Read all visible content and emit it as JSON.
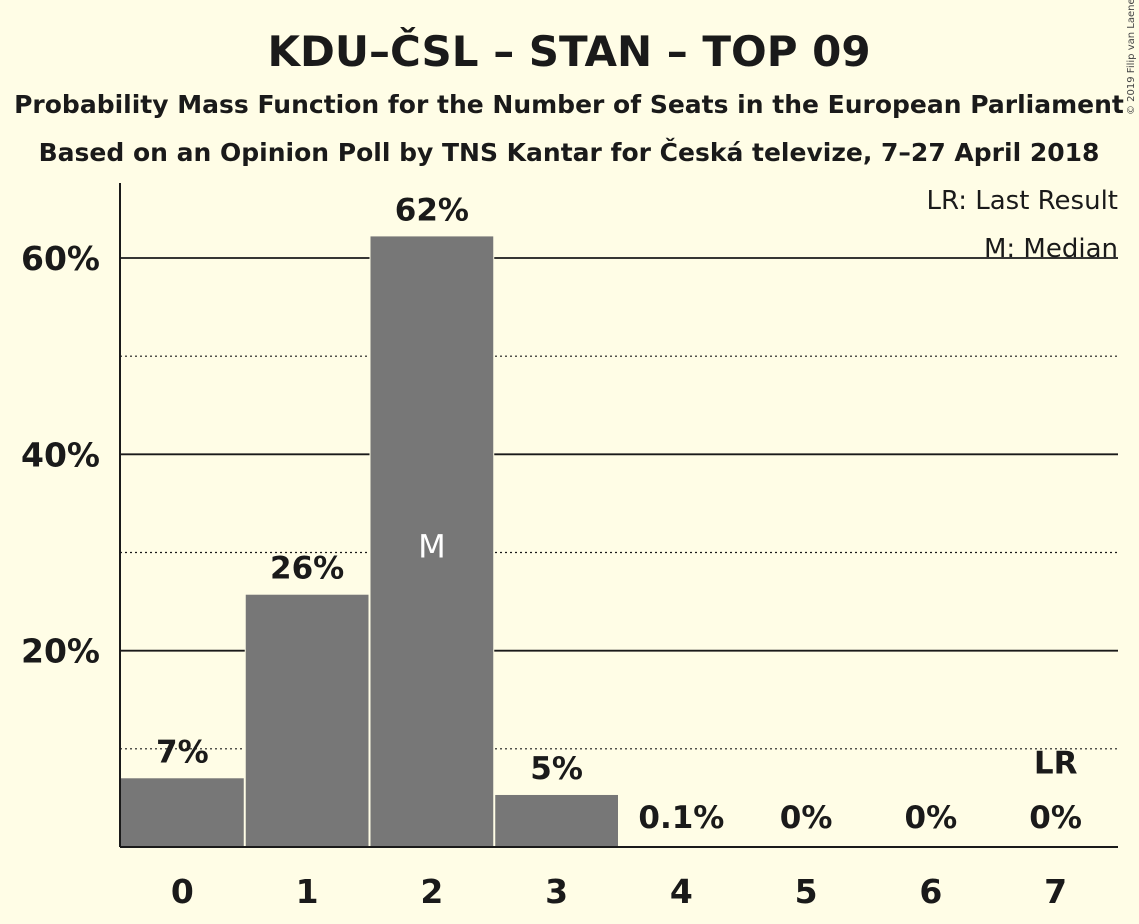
{
  "header": {
    "title": "KDU–ČSL – STAN – TOP 09",
    "subtitle1": "Probability Mass Function for the Number of Seats in the European Parliament",
    "subtitle2": "Based on an Opinion Poll by TNS Kantar for Česká televize, 7–27 April 2018"
  },
  "legend": {
    "last_result": "LR: Last Result",
    "median": "M: Median"
  },
  "copyright": "© 2019 Filip van Laenen",
  "colors": {
    "background": "#fffde6",
    "bar": "#777777",
    "text": "#1a1a1a"
  },
  "chart_data": {
    "type": "bar",
    "categories": [
      "0",
      "1",
      "2",
      "3",
      "4",
      "5",
      "6",
      "7"
    ],
    "values": [
      7,
      25.7,
      62.2,
      5.3,
      0.1,
      0,
      0,
      0
    ],
    "value_labels": [
      "7%",
      "26%",
      "62%",
      "5%",
      "0.1%",
      "0%",
      "0%",
      "0%"
    ],
    "yticks": [
      20,
      40,
      60
    ],
    "ytick_labels": [
      "20%",
      "40%",
      "60%"
    ],
    "minor_gridlines": [
      10,
      30,
      50
    ],
    "ylim": [
      0,
      67.5
    ],
    "median_category": "2",
    "median_marker": "M",
    "last_result_category": "7",
    "last_result_marker": "LR"
  }
}
